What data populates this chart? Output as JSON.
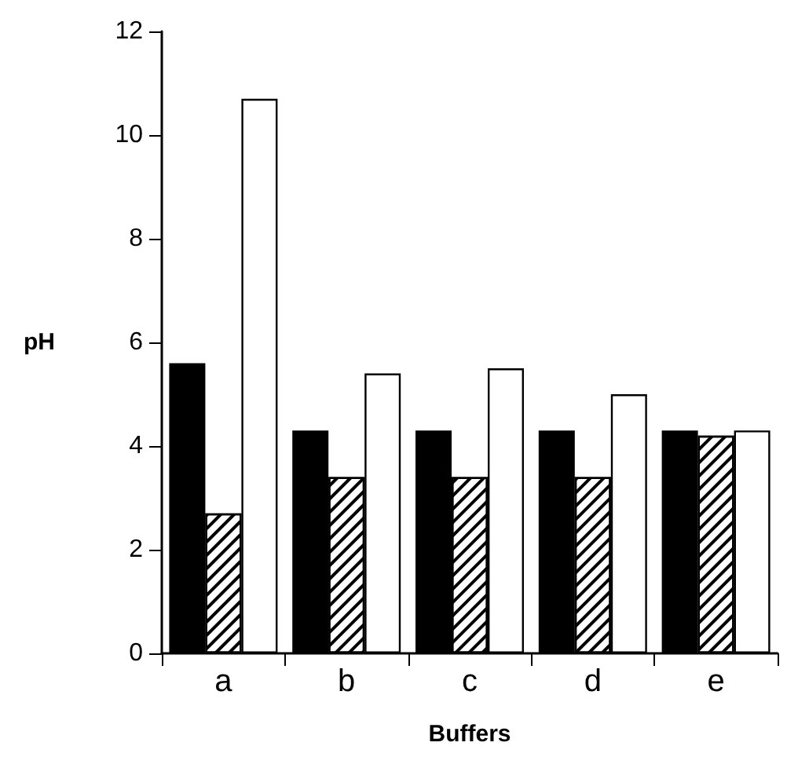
{
  "chart_data": {
    "type": "bar",
    "xlabel": "Buffers",
    "ylabel": "pH",
    "categories": [
      "a",
      "b",
      "c",
      "d",
      "e"
    ],
    "series": [
      {
        "color": "#000000",
        "values": [
          5.6,
          4.3,
          4.3,
          4.3,
          4.3
        ]
      },
      {
        "color": "#ffffff",
        "values": [
          2.7,
          3.4,
          3.4,
          3.4,
          4.2
        ]
      },
      {
        "color": "#ffffff",
        "values": [
          10.7,
          5.4,
          5.5,
          5.0,
          4.3
        ]
      }
    ],
    "ylim": [
      0,
      12
    ],
    "yticks": [
      0,
      2,
      4,
      6,
      8,
      10,
      12
    ],
    "grid": false
  }
}
